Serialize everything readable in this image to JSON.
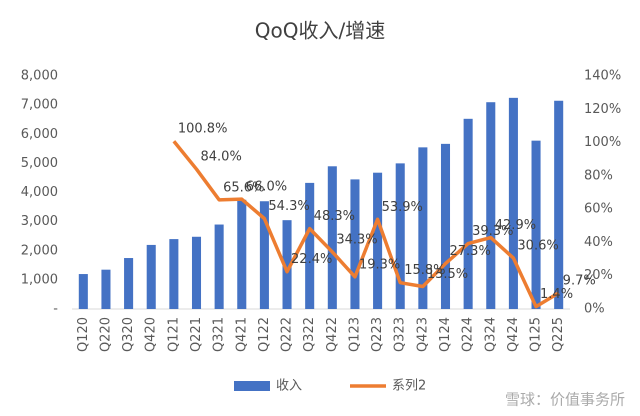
{
  "chart_data": {
    "type": "bar_line",
    "title": "QoQ收入/增速",
    "categories": [
      "Q120",
      "Q220",
      "Q320",
      "Q420",
      "Q121",
      "Q221",
      "Q321",
      "Q421",
      "Q122",
      "Q222",
      "Q322",
      "Q422",
      "Q123",
      "Q223",
      "Q323",
      "Q423",
      "Q124",
      "Q224",
      "Q324",
      "Q424",
      "Q125",
      "Q225"
    ],
    "series": [
      {
        "name": "收入",
        "type": "bar",
        "color": "#4472c4",
        "values": [
          1200,
          1350,
          1750,
          2200,
          2400,
          2480,
          2900,
          3750,
          3700,
          3050,
          4330,
          4900,
          4450,
          4680,
          5000,
          5550,
          5670,
          6530,
          7100,
          7250,
          5780,
          7150
        ]
      },
      {
        "name": "系列2",
        "type": "line",
        "axis": "y2",
        "color": "#ed7d31",
        "values": [
          null,
          null,
          null,
          null,
          100.8,
          84.0,
          65.6,
          66.0,
          54.3,
          22.4,
          48.3,
          34.3,
          19.3,
          53.9,
          15.8,
          13.5,
          27.3,
          39.3,
          42.9,
          30.6,
          1.4,
          9.7
        ],
        "value_labels": [
          null,
          null,
          null,
          null,
          "100.8%",
          "84.0%",
          "65.6%",
          "66.0%",
          "54.3%",
          "22.4%",
          "48.3%",
          "34.3%",
          "19.3%",
          "53.9%",
          "15.8%",
          "13.5%",
          "27.3%",
          "39.3%",
          "42.9%",
          "30.6%",
          "1.4%",
          "9.7%"
        ]
      }
    ],
    "ylim": [
      0,
      8000
    ],
    "yticks": [
      {
        "value": 0,
        "label": "-"
      },
      {
        "value": 1000,
        "label": "1,000"
      },
      {
        "value": 2000,
        "label": "2,000"
      },
      {
        "value": 3000,
        "label": "3,000"
      },
      {
        "value": 4000,
        "label": "4,000"
      },
      {
        "value": 5000,
        "label": "5,000"
      },
      {
        "value": 6000,
        "label": "6,000"
      },
      {
        "value": 7000,
        "label": "7,000"
      },
      {
        "value": 8000,
        "label": "8,000"
      }
    ],
    "y2lim": [
      0,
      140
    ],
    "y2ticks": [
      {
        "value": 0,
        "label": "0%"
      },
      {
        "value": 20,
        "label": "20%"
      },
      {
        "value": 40,
        "label": "40%"
      },
      {
        "value": 60,
        "label": "60%"
      },
      {
        "value": 80,
        "label": "80%"
      },
      {
        "value": 100,
        "label": "100%"
      },
      {
        "value": 120,
        "label": "120%"
      },
      {
        "value": 140,
        "label": "140%"
      }
    ],
    "legend": "bottom",
    "watermark": "雪球：价值事务所"
  }
}
